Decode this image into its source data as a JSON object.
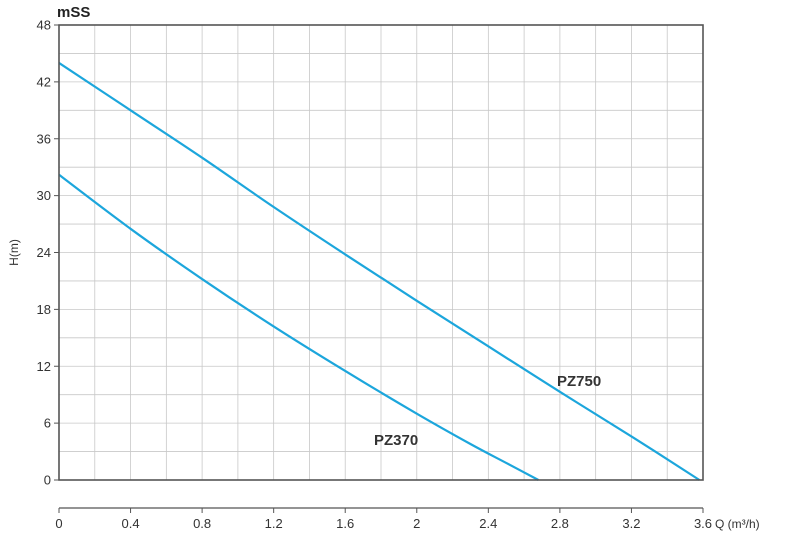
{
  "chart_data": {
    "type": "line",
    "title": "",
    "y_unit": "mSS",
    "ylabel": "H(m)",
    "xlabel": "Q (m³/h)",
    "xlim": [
      0,
      3.6
    ],
    "ylim": [
      0,
      48
    ],
    "x_ticks": [
      "0",
      "0.4",
      "0.8",
      "1.2",
      "1.6",
      "2",
      "2.4",
      "2.8",
      "3.2",
      "3.6"
    ],
    "y_ticks": [
      "0",
      "6",
      "12",
      "18",
      "24",
      "30",
      "36",
      "42",
      "48"
    ],
    "grid": true,
    "series": [
      {
        "name": "PZ750",
        "color": "#1ca6dc",
        "points": [
          [
            0,
            44
          ],
          [
            0.4,
            39
          ],
          [
            0.8,
            34
          ],
          [
            1.2,
            28.8
          ],
          [
            1.6,
            23.8
          ],
          [
            2.0,
            18.9
          ],
          [
            2.4,
            14.1
          ],
          [
            2.8,
            9.3
          ],
          [
            3.2,
            4.6
          ],
          [
            3.58,
            0
          ]
        ]
      },
      {
        "name": "PZ370",
        "color": "#1ca6dc",
        "points": [
          [
            0,
            32.2
          ],
          [
            0.4,
            26.5
          ],
          [
            0.8,
            21.2
          ],
          [
            1.2,
            16.2
          ],
          [
            1.6,
            11.5
          ],
          [
            2.0,
            7.0
          ],
          [
            2.3,
            3.8
          ],
          [
            2.5,
            1.8
          ],
          [
            2.68,
            0
          ]
        ]
      }
    ]
  }
}
